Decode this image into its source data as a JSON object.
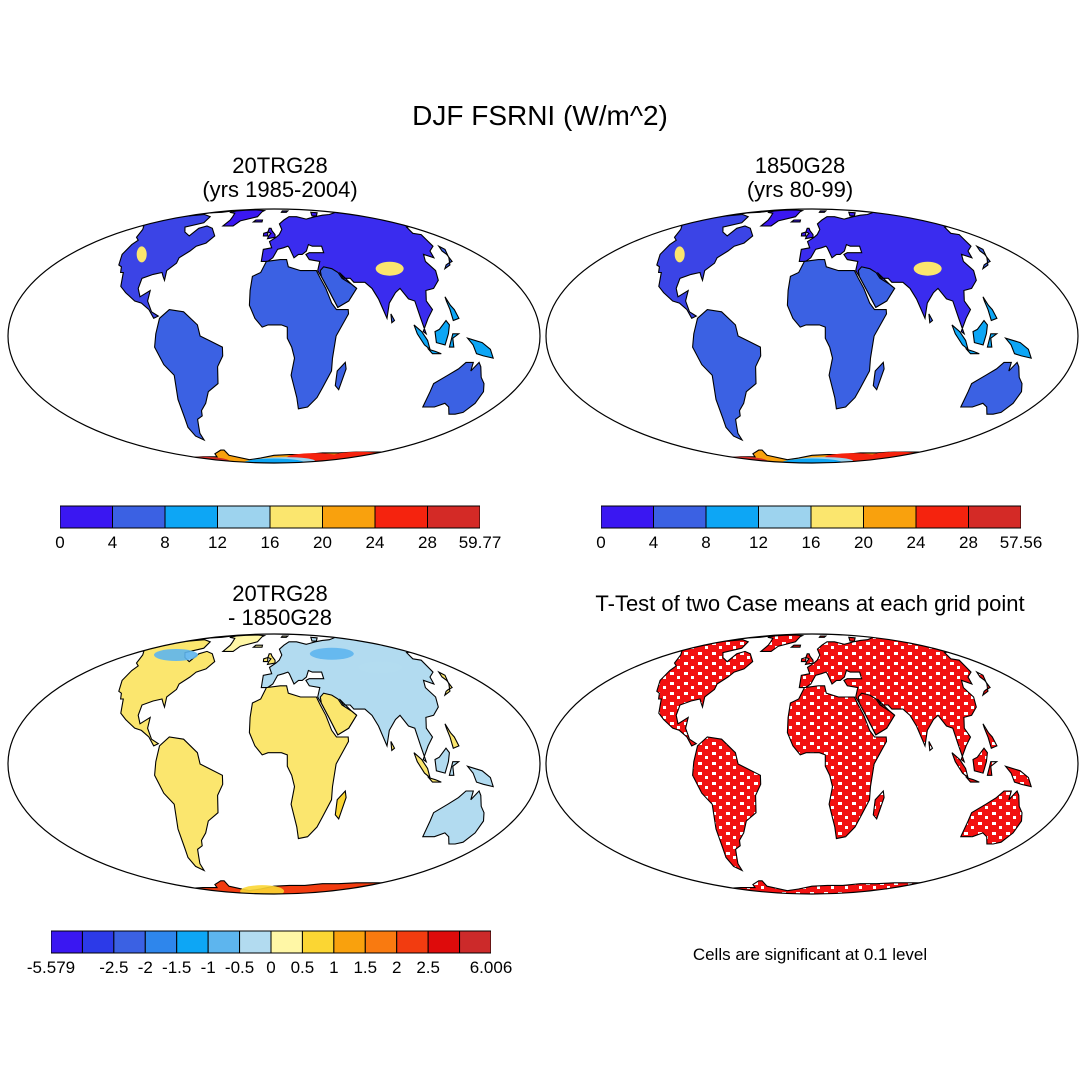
{
  "figure": {
    "title": "DJF FSRNI (W/m^2)"
  },
  "panels": [
    {
      "id": "tl",
      "title_lines": [
        "20TRG28",
        "(yrs 1985-2004)"
      ],
      "kind": "field",
      "colorbar": {
        "colors": [
          "#3a17f2",
          "#3b61e3",
          "#0da6f5",
          "#9dd3ee",
          "#fbe66e",
          "#f9a10d",
          "#f5230e",
          "#d42a26"
        ],
        "labels": [
          "0",
          "4",
          "8",
          "12",
          "16",
          "20",
          "24",
          "28",
          "59.77"
        ]
      }
    },
    {
      "id": "tr",
      "title_lines": [
        "1850G28",
        "(yrs 80-99)"
      ],
      "kind": "field",
      "colorbar": {
        "colors": [
          "#3a17f2",
          "#3b61e3",
          "#0da6f5",
          "#9dd3ee",
          "#fbe66e",
          "#f9a10d",
          "#f5230e",
          "#d42a26"
        ],
        "labels": [
          "0",
          "4",
          "8",
          "12",
          "16",
          "20",
          "24",
          "28",
          "57.56"
        ]
      }
    },
    {
      "id": "bl",
      "title_lines": [
        "20TRG28",
        "- 1850G28"
      ],
      "kind": "difference",
      "colorbar": {
        "colors": [
          "#3a17f2",
          "#2c3ae8",
          "#3b61e3",
          "#2e86ec",
          "#0da6f5",
          "#5db5ee",
          "#b2dbf0",
          "#fff7a6",
          "#fbd633",
          "#f9a10d",
          "#f97a10",
          "#f23c10",
          "#de0b0b",
          "#cc2a2a"
        ],
        "labels": [
          "-5.579",
          "-2.5",
          "-2",
          "-1.5",
          "-1",
          "-0.5",
          "0",
          "0.5",
          "1",
          "1.5",
          "2",
          "2.5",
          "6.006"
        ],
        "label_slots": [
          0,
          2,
          3,
          4,
          5,
          6,
          7,
          8,
          9,
          10,
          11,
          12,
          14
        ]
      }
    },
    {
      "id": "br",
      "title_lines": [
        "T-Test of two Case means at each grid point"
      ],
      "kind": "ttest",
      "note": "Cells are significant at 0.1 level"
    }
  ],
  "colors": {
    "significant": "#f21111",
    "coast": "#000000",
    "ocean": "#ffffff"
  }
}
